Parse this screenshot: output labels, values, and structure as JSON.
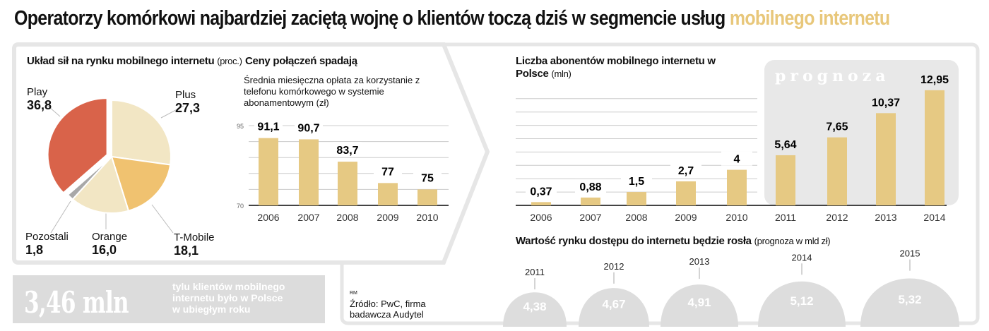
{
  "title": {
    "main": "Operatorzy komórkowi najbardziej zaciętą wojnę o klientów toczą dziś w segmencie usług",
    "highlight": "mobilnego internetu"
  },
  "colors": {
    "bar": "#e6c983",
    "highlight": "#e8c77a",
    "play": "#d9634a",
    "plus": "#f2e6c4",
    "tmobile": "#f0c270",
    "orange": "#f2e6c4",
    "others": "#a8a8a8",
    "forecast_bg": "#e8e8e8",
    "dome": "#dddddd"
  },
  "chart_data": [
    {
      "type": "pie",
      "title": "Układ sił na rynku mobilnego internetu",
      "unit": "(proc.)",
      "slices": [
        {
          "name": "Plus",
          "value": 27.3,
          "label": "27,3"
        },
        {
          "name": "T-Mobile",
          "value": 18.1,
          "label": "18,1"
        },
        {
          "name": "Orange",
          "value": 16.0,
          "label": "16,0"
        },
        {
          "name": "Pozostali",
          "value": 1.8,
          "label": "1,8"
        },
        {
          "name": "Play",
          "value": 36.8,
          "label": "36,8"
        }
      ]
    },
    {
      "type": "bar",
      "title": "Ceny połączeń spadają",
      "subtitle": "Średnia miesięczna opłata za korzystanie z telefonu komórkowego w systemie abonamentowym (zł)",
      "categories": [
        "2006",
        "2007",
        "2008",
        "2009",
        "2010"
      ],
      "values": [
        91.1,
        90.7,
        83.7,
        77,
        75
      ],
      "labels": [
        "91,1",
        "90,7",
        "83,7",
        "77",
        "75"
      ],
      "ylim": [
        70,
        95
      ],
      "yticks": [
        "95",
        "70"
      ],
      "grid": true
    },
    {
      "type": "bar",
      "title": "Liczba abonentów mobilnego internetu w Polsce",
      "unit": "(mln)",
      "forecast_label": "prognoza",
      "forecast_from": "2011",
      "categories": [
        "2006",
        "2007",
        "2008",
        "2009",
        "2010",
        "2011",
        "2012",
        "2013",
        "2014"
      ],
      "values": [
        0.37,
        0.88,
        1.5,
        2.7,
        4,
        5.64,
        7.65,
        10.37,
        12.95
      ],
      "labels": [
        "0,37",
        "0,88",
        "1,5",
        "2,7",
        "4",
        "5,64",
        "7,65",
        "10,37",
        "12,95"
      ],
      "ylim": [
        0,
        14
      ],
      "grid": true
    },
    {
      "type": "bar",
      "title": "Wartość rynku dostępu do internetu będzie rosła",
      "unit": "(prognoza w mld zł)",
      "categories": [
        "2011",
        "2012",
        "2013",
        "2014",
        "2015"
      ],
      "values": [
        4.38,
        4.67,
        4.91,
        5.12,
        5.32
      ],
      "labels": [
        "4,38",
        "4,67",
        "4,91",
        "5,12",
        "5,32"
      ]
    }
  ],
  "callout": {
    "number": "3,46 mln",
    "text1": "tylu klientów mobilnego",
    "text2": "internetu było w Polsce",
    "text3": "w ubiegłym roku"
  },
  "source": {
    "mark": "RM",
    "line1": "Źródło: PwC, firma",
    "line2": "badawcza Audytel"
  }
}
